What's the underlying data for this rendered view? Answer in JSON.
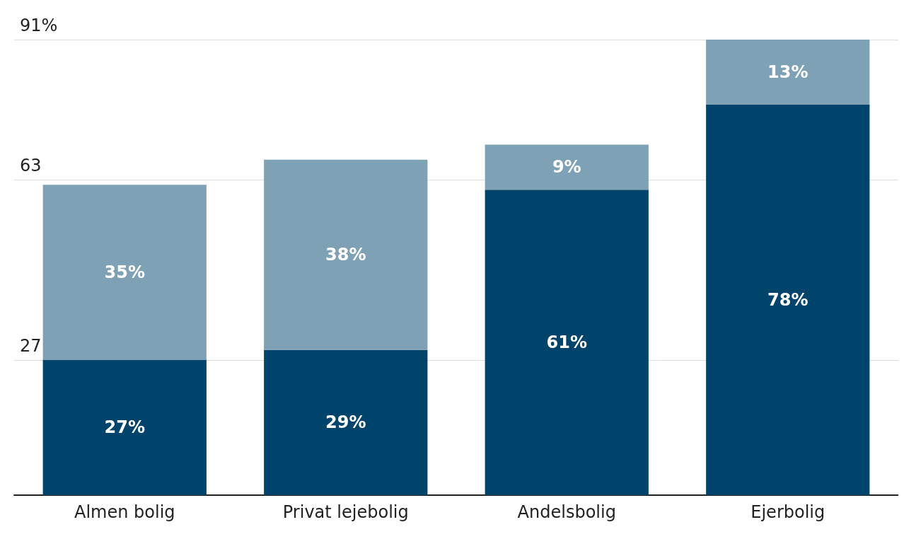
{
  "chart_data": {
    "type": "bar",
    "stacked": true,
    "categories": [
      "Almen bolig",
      "Privat lejebolig",
      "Andelsbolig",
      "Ejerbolig"
    ],
    "series": [
      {
        "color": "#00436b",
        "values": [
          27,
          29,
          61,
          78
        ],
        "value_labels": [
          "27%",
          "29%",
          "61%",
          "78%"
        ]
      },
      {
        "color": "#7fa1b6",
        "values": [
          35,
          38,
          9,
          13
        ],
        "value_labels": [
          "35%",
          "38%",
          "9%",
          "13%"
        ]
      }
    ],
    "ylim": [
      0,
      91
    ],
    "yticks": [
      27,
      63,
      {
        "value": 91,
        "label": "91%"
      }
    ],
    "grid": "y"
  }
}
